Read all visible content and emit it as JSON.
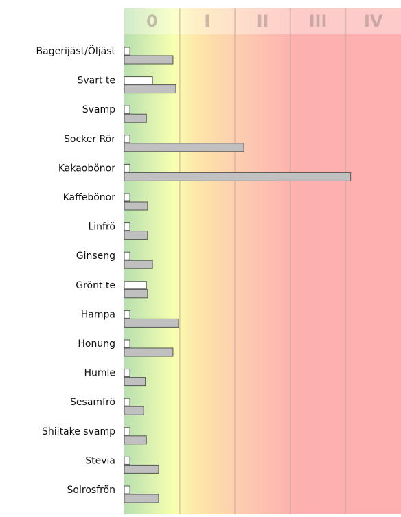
{
  "chart_data": {
    "type": "hbar",
    "categories": [
      "Bagerijäst/Öljäst",
      "Svart te",
      "Svamp",
      "Socker Rör",
      "Kakaobönor",
      "Kaffebönor",
      "Linfrö",
      "Ginseng",
      "Grönt te",
      "Hampa",
      "Honung",
      "Humle",
      "Sesamfrö",
      "Shiitake svamp",
      "Stevia",
      "Solrosfrön"
    ],
    "series": [
      {
        "color": "#ffffff",
        "values": [
          0.1,
          0.51,
          0.1,
          0.1,
          0.1,
          0.1,
          0.1,
          0.1,
          0.4,
          0.1,
          0.1,
          0.1,
          0.1,
          0.1,
          0.1,
          0.1
        ]
      },
      {
        "color": "#c0c0c0",
        "values": [
          0.88,
          0.93,
          0.4,
          2.16,
          4.09,
          0.42,
          0.42,
          0.51,
          0.42,
          0.98,
          0.88,
          0.38,
          0.35,
          0.4,
          0.62,
          0.62
        ]
      }
    ],
    "xlim": [
      0,
      5
    ],
    "xticks": [
      {
        "value": 0.5,
        "label": "0"
      },
      {
        "value": 1.5,
        "label": "I"
      },
      {
        "value": 2.5,
        "label": "II"
      },
      {
        "value": 3.5,
        "label": "III"
      },
      {
        "value": 4.5,
        "label": "IV"
      }
    ]
  }
}
